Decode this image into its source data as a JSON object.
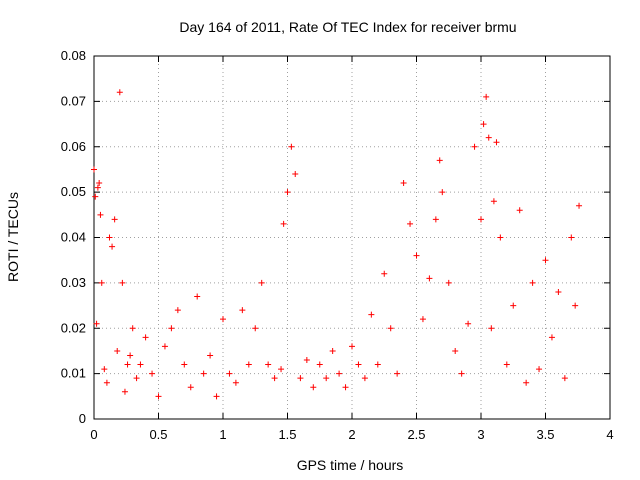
{
  "chart_data": {
    "type": "scatter",
    "title": "Day 164 of 2011, Rate Of TEC Index for receiver brmu",
    "xlabel": "GPS time / hours",
    "ylabel": "ROTI / TECUs",
    "xlim": [
      0,
      4
    ],
    "ylim": [
      0,
      0.08
    ],
    "x_ticks": [
      0,
      0.5,
      1,
      1.5,
      2,
      2.5,
      3,
      3.5,
      4
    ],
    "x_tick_labels": [
      "0",
      "0.5",
      "1",
      "1.5",
      "2",
      "2.5",
      "3",
      "3.5",
      "4"
    ],
    "y_ticks": [
      0,
      0.01,
      0.02,
      0.03,
      0.04,
      0.05,
      0.06,
      0.07,
      0.08
    ],
    "y_tick_labels": [
      "0",
      "0.01",
      "0.02",
      "0.03",
      "0.04",
      "0.05",
      "0.06",
      "0.07",
      "0.08"
    ],
    "grid": true,
    "marker": "+",
    "color": "#ff0000",
    "series": [
      {
        "name": "ROTI",
        "x": [
          0.0,
          0.01,
          0.02,
          0.03,
          0.04,
          0.05,
          0.06,
          0.08,
          0.1,
          0.12,
          0.14,
          0.16,
          0.18,
          0.2,
          0.22,
          0.24,
          0.26,
          0.28,
          0.3,
          0.33,
          0.36,
          0.4,
          0.45,
          0.5,
          0.55,
          0.6,
          0.65,
          0.7,
          0.75,
          0.8,
          0.85,
          0.9,
          0.95,
          1.0,
          1.05,
          1.1,
          1.15,
          1.2,
          1.25,
          1.3,
          1.35,
          1.4,
          1.45,
          1.47,
          1.5,
          1.53,
          1.56,
          1.6,
          1.65,
          1.7,
          1.75,
          1.8,
          1.85,
          1.9,
          1.95,
          2.0,
          2.05,
          2.1,
          2.15,
          2.2,
          2.25,
          2.3,
          2.35,
          2.4,
          2.45,
          2.5,
          2.55,
          2.6,
          2.65,
          2.68,
          2.7,
          2.75,
          2.8,
          2.85,
          2.9,
          2.95,
          3.0,
          3.02,
          3.04,
          3.06,
          3.08,
          3.1,
          3.12,
          3.15,
          3.2,
          3.25,
          3.3,
          3.35,
          3.4,
          3.45,
          3.5,
          3.55,
          3.6,
          3.65,
          3.7,
          3.73,
          3.76
        ],
        "y": [
          0.055,
          0.049,
          0.021,
          0.051,
          0.052,
          0.045,
          0.03,
          0.011,
          0.008,
          0.04,
          0.038,
          0.044,
          0.015,
          0.072,
          0.03,
          0.006,
          0.012,
          0.014,
          0.02,
          0.009,
          0.012,
          0.018,
          0.01,
          0.005,
          0.016,
          0.02,
          0.024,
          0.012,
          0.007,
          0.027,
          0.01,
          0.014,
          0.005,
          0.022,
          0.01,
          0.008,
          0.024,
          0.012,
          0.02,
          0.03,
          0.012,
          0.009,
          0.011,
          0.043,
          0.05,
          0.06,
          0.054,
          0.009,
          0.013,
          0.007,
          0.012,
          0.009,
          0.015,
          0.01,
          0.007,
          0.016,
          0.012,
          0.009,
          0.023,
          0.012,
          0.032,
          0.02,
          0.01,
          0.052,
          0.043,
          0.036,
          0.022,
          0.031,
          0.044,
          0.057,
          0.05,
          0.03,
          0.015,
          0.01,
          0.021,
          0.06,
          0.044,
          0.065,
          0.071,
          0.062,
          0.02,
          0.048,
          0.061,
          0.04,
          0.012,
          0.025,
          0.046,
          0.008,
          0.03,
          0.011,
          0.035,
          0.018,
          0.028,
          0.009,
          0.04,
          0.025,
          0.047
        ]
      }
    ]
  }
}
